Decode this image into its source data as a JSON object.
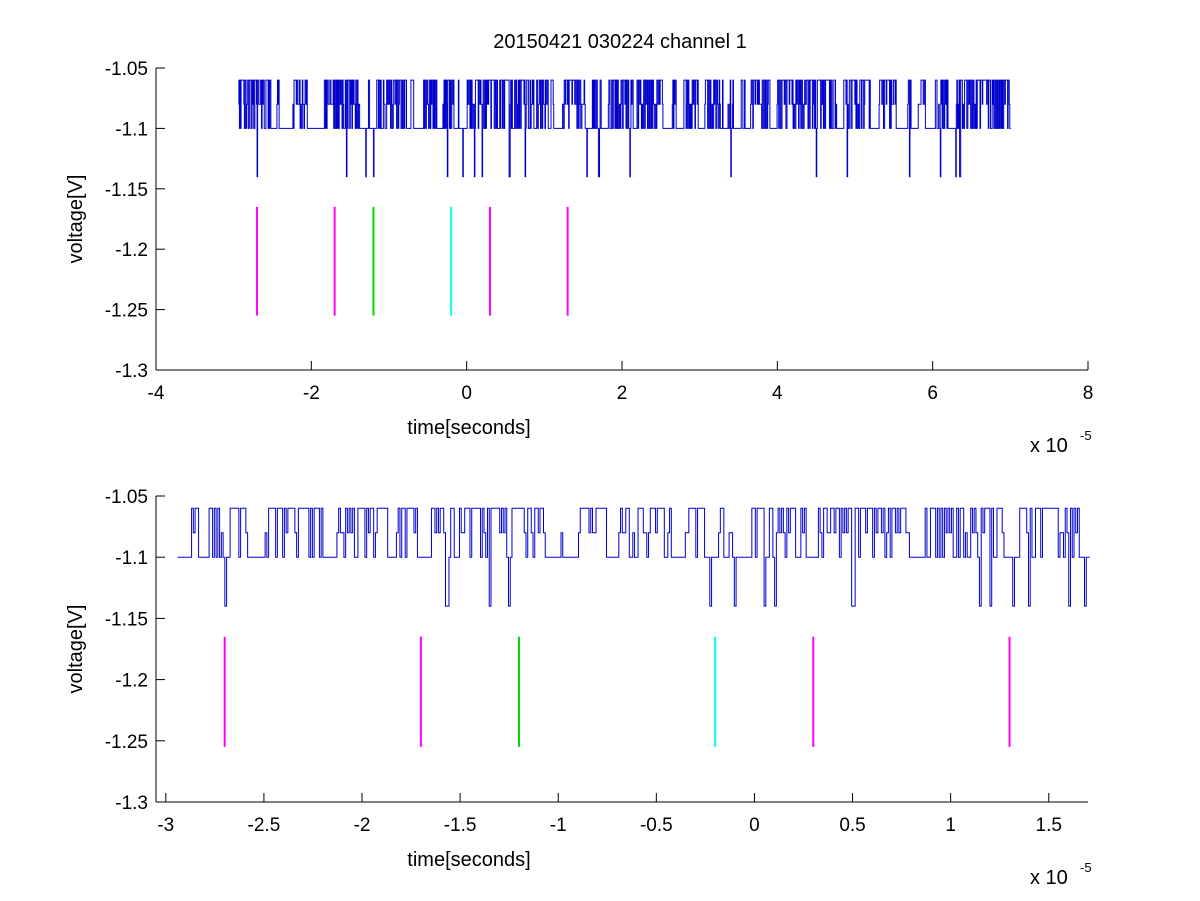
{
  "figure_title": "20150421 030224 channel 1",
  "colors": {
    "background": "#ffffff",
    "axes": "#000000",
    "signal": "#0000cc",
    "magenta": "#ff00ff",
    "green": "#00dd00",
    "cyan": "#00ffff"
  },
  "chart_data": [
    {
      "type": "line",
      "title": "20150421 030224 channel 1",
      "xlabel": "time[seconds]",
      "ylabel": "voltage[V]",
      "x_multiplier_label": "x 10",
      "x_multiplier_exponent": "-5",
      "xlim": [
        -4,
        8
      ],
      "ylim": [
        -1.3,
        -1.05
      ],
      "xticks": [
        -4,
        -2,
        0,
        2,
        4,
        6,
        8
      ],
      "xtick_labels": [
        "-4",
        "-2",
        "0",
        "2",
        "4",
        "6",
        "8"
      ],
      "yticks": [
        -1.05,
        -1.1,
        -1.15,
        -1.2,
        -1.25,
        -1.3
      ],
      "ytick_labels": [
        "-1.05",
        "-1.1",
        "-1.15",
        "-1.2",
        "-1.25",
        "-1.3"
      ],
      "grid": false,
      "series": [
        {
          "kind": "waveform",
          "color": "signal",
          "x_range": [
            -2.94,
            7.0
          ],
          "baseline": -1.1,
          "levels": [
            -1.06,
            -1.08,
            -1.1,
            -1.14
          ],
          "dip_times": [
            -2.7,
            -1.55,
            -1.3,
            -1.2,
            -0.25,
            -0.05,
            0.1,
            0.2,
            0.55,
            0.75,
            1.55,
            1.7,
            2.1,
            3.4,
            4.5,
            4.9,
            5.7,
            6.1,
            6.3,
            6.35
          ]
        }
      ],
      "markers": [
        {
          "x": -2.7,
          "y_range": [
            -1.255,
            -1.165
          ],
          "color": "magenta"
        },
        {
          "x": -1.7,
          "y_range": [
            -1.255,
            -1.165
          ],
          "color": "magenta"
        },
        {
          "x": -1.2,
          "y_range": [
            -1.255,
            -1.165
          ],
          "color": "green"
        },
        {
          "x": -0.2,
          "y_range": [
            -1.255,
            -1.165
          ],
          "color": "cyan"
        },
        {
          "x": 0.3,
          "y_range": [
            -1.255,
            -1.165
          ],
          "color": "magenta"
        },
        {
          "x": 1.3,
          "y_range": [
            -1.255,
            -1.165
          ],
          "color": "magenta"
        }
      ]
    },
    {
      "type": "line",
      "title": "",
      "xlabel": "time[seconds]",
      "ylabel": "voltage[V]",
      "x_multiplier_label": "x 10",
      "x_multiplier_exponent": "-5",
      "xlim": [
        -3.05,
        1.7
      ],
      "ylim": [
        -1.3,
        -1.05
      ],
      "xticks": [
        -3,
        -2.5,
        -2,
        -1.5,
        -1,
        -0.5,
        0,
        0.5,
        1,
        1.5
      ],
      "xtick_labels": [
        "-3",
        "-2.5",
        "-2",
        "-1.5",
        "-1",
        "-0.5",
        "0",
        "0.5",
        "1",
        "1.5"
      ],
      "yticks": [
        -1.05,
        -1.1,
        -1.15,
        -1.2,
        -1.25,
        -1.3
      ],
      "ytick_labels": [
        "-1.05",
        "-1.1",
        "-1.15",
        "-1.2",
        "-1.25",
        "-1.3"
      ],
      "grid": false,
      "series": [
        {
          "kind": "waveform",
          "color": "signal",
          "x_range": [
            -2.94,
            1.7
          ],
          "baseline": -1.1,
          "levels": [
            -1.06,
            -1.08,
            -1.1,
            -1.12,
            -1.14
          ],
          "dip_times": [
            -2.7,
            -1.57,
            -1.35,
            -1.25,
            -0.23,
            -0.1,
            0.05,
            0.1,
            0.5,
            1.15,
            1.2,
            1.32,
            1.4,
            1.6,
            1.68
          ]
        }
      ],
      "markers": [
        {
          "x": -2.7,
          "y_range": [
            -1.255,
            -1.165
          ],
          "color": "magenta"
        },
        {
          "x": -1.7,
          "y_range": [
            -1.255,
            -1.165
          ],
          "color": "magenta"
        },
        {
          "x": -1.2,
          "y_range": [
            -1.255,
            -1.165
          ],
          "color": "green"
        },
        {
          "x": -0.2,
          "y_range": [
            -1.255,
            -1.165
          ],
          "color": "cyan"
        },
        {
          "x": 0.3,
          "y_range": [
            -1.255,
            -1.165
          ],
          "color": "magenta"
        },
        {
          "x": 1.3,
          "y_range": [
            -1.255,
            -1.165
          ],
          "color": "magenta"
        }
      ]
    }
  ]
}
